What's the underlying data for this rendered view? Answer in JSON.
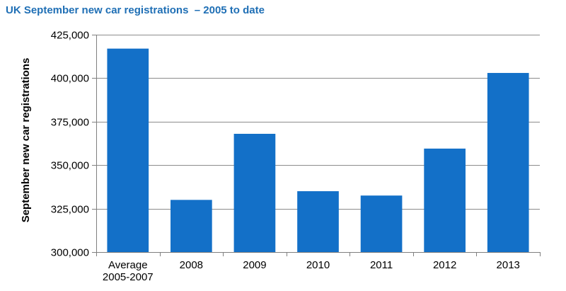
{
  "chart_data": {
    "type": "bar",
    "title": "UK September new car registrations  – 2005 to date",
    "xlabel": "",
    "ylabel": "September new car registrations",
    "categories": [
      [
        "Average",
        "2005-2007"
      ],
      [
        "2008"
      ],
      [
        "2009"
      ],
      [
        "2010"
      ],
      [
        "2011"
      ],
      [
        "2012"
      ],
      [
        "2013"
      ]
    ],
    "values": [
      417000,
      330000,
      368000,
      335000,
      332500,
      359500,
      403000
    ],
    "ylim": [
      300000,
      425000
    ],
    "yticks": [
      300000,
      325000,
      350000,
      375000,
      400000,
      425000
    ],
    "ytick_labels": [
      "300,000",
      "325,000",
      "350,000",
      "375,000",
      "400,000",
      "425,000"
    ],
    "grid": true,
    "legend": "none",
    "colors": {
      "bar": "#1370c8",
      "grid": "#8c8c8c",
      "axis": "#7f7f7f",
      "title": "#1f6fb5"
    }
  }
}
